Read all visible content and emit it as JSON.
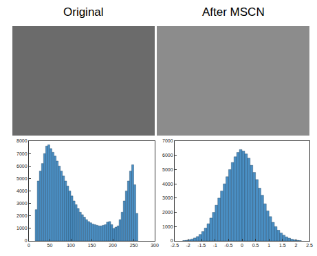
{
  "chart_data": [
    {
      "type": "histogram",
      "title": "Original",
      "color": "#4a8fc4",
      "grid": false,
      "bins": [
        15,
        20,
        25,
        30,
        35,
        40,
        45,
        50,
        55,
        60,
        65,
        70,
        75,
        80,
        85,
        90,
        95,
        100,
        105,
        110,
        115,
        120,
        125,
        130,
        135,
        140,
        145,
        150,
        155,
        160,
        165,
        170,
        175,
        180,
        185,
        190,
        195,
        200,
        205,
        210,
        215,
        220,
        225,
        230,
        235,
        240,
        245,
        250,
        255,
        260
      ],
      "values": [
        2500,
        4800,
        5600,
        6200,
        7000,
        7600,
        7700,
        7400,
        7100,
        6800,
        6400,
        6000,
        5600,
        5200,
        4800,
        4400,
        4000,
        3600,
        3200,
        2900,
        2600,
        2300,
        2100,
        1900,
        1700,
        1550,
        1450,
        1350,
        1300,
        1250,
        1200,
        1200,
        1250,
        1300,
        1500,
        1550,
        1300,
        1000,
        1100,
        1200,
        1700,
        2300,
        3200,
        4000,
        4800,
        5600,
        6100,
        4500,
        2200
      ],
      "xlim": [
        0,
        300
      ],
      "xticks": [
        0,
        50,
        100,
        150,
        200,
        250,
        300
      ],
      "ylim": [
        0,
        8000
      ],
      "yticks": [
        0,
        1000,
        2000,
        3000,
        4000,
        5000,
        6000,
        7000,
        8000
      ]
    },
    {
      "type": "histogram",
      "title": "After MSCN",
      "color": "#4a8fc4",
      "grid": false,
      "bins": [
        -2.2,
        -2.1,
        -2.0,
        -1.9,
        -1.8,
        -1.7,
        -1.6,
        -1.5,
        -1.4,
        -1.3,
        -1.2,
        -1.1,
        -1.0,
        -0.9,
        -0.8,
        -0.7,
        -0.6,
        -0.5,
        -0.4,
        -0.3,
        -0.2,
        -0.1,
        0.0,
        0.1,
        0.2,
        0.3,
        0.4,
        0.5,
        0.6,
        0.7,
        0.8,
        0.9,
        1.0,
        1.1,
        1.2,
        1.3,
        1.4,
        1.5,
        1.6,
        1.7,
        1.8,
        1.9,
        2.0,
        2.1,
        2.2
      ],
      "values": [
        20,
        40,
        80,
        130,
        200,
        300,
        450,
        650,
        900,
        1200,
        1600,
        2000,
        2500,
        3000,
        3500,
        4000,
        4500,
        5000,
        5500,
        5900,
        6200,
        6400,
        6300,
        6100,
        5800,
        5300,
        4800,
        4300,
        3700,
        3200,
        2600,
        2100,
        1700,
        1300,
        1000,
        750,
        550,
        400,
        280,
        190,
        120,
        70,
        40,
        20
      ],
      "xlim": [
        -2.5,
        2.5
      ],
      "xticks": [
        -2.5,
        -2,
        -1.5,
        -1,
        -0.5,
        0,
        0.5,
        1,
        1.5,
        2,
        2.5
      ],
      "ylim": [
        0,
        7000
      ],
      "yticks": [
        0,
        1000,
        2000,
        3000,
        4000,
        5000,
        6000,
        7000
      ]
    }
  ]
}
